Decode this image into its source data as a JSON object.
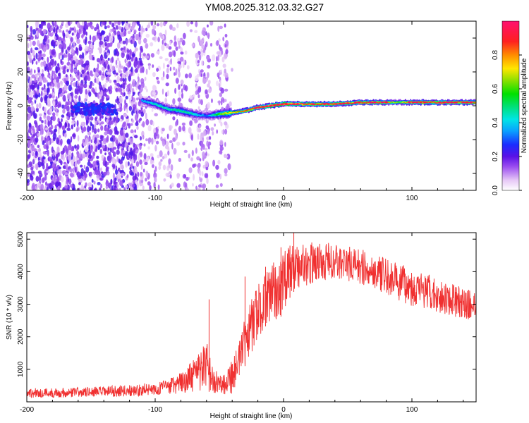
{
  "title": "YM08.2025.312.03.32.G27",
  "chart_data": [
    {
      "type": "heatmap",
      "title": "YM08.2025.312.03.32.G27",
      "xlabel": "Height of straight line (km)",
      "ylabel": "Frequency (Hz)",
      "xlim": [
        -200,
        150
      ],
      "ylim": [
        -50,
        50
      ],
      "xticks": [
        "-200",
        "-100",
        "0",
        "100"
      ],
      "yticks": [
        "40",
        "20",
        "0",
        "-20",
        "-40"
      ],
      "colorbar": {
        "label": "Normalized spectral amplitude",
        "range": [
          0,
          1
        ],
        "ticks": [
          "0.0",
          "0.2",
          "0.4",
          "0.6",
          "0.8"
        ]
      },
      "ridge": {
        "x": [
          -110,
          -100,
          -90,
          -80,
          -70,
          -60,
          -50,
          -40,
          -30,
          -20,
          -10,
          0,
          10,
          20,
          40,
          60,
          80,
          90,
          100,
          120,
          150
        ],
        "frequency_hz": [
          3,
          1,
          -2,
          -3,
          -5,
          -6,
          -5,
          -4,
          -3,
          -1,
          0,
          1,
          1,
          1,
          1,
          2,
          2,
          2,
          2,
          2,
          2
        ],
        "amplitude": [
          0.35,
          0.45,
          0.45,
          0.5,
          0.45,
          0.3,
          0.6,
          0.75,
          0.85,
          0.9,
          0.95,
          1.0,
          0.95,
          0.9,
          0.9,
          0.9,
          0.85,
          0.6,
          0.9,
          0.9,
          0.85
        ]
      }
    },
    {
      "type": "line",
      "xlabel": "Height of straight line (km)",
      "ylabel": "SNR (10 * v/v)",
      "xlim": [
        -200,
        150
      ],
      "ylim": [
        0,
        5200
      ],
      "xticks": [
        "-200",
        "-100",
        "0",
        "100"
      ],
      "yticks": [
        "5000",
        "4000",
        "3000",
        "2000",
        "1000"
      ],
      "series": [
        {
          "name": "SNR",
          "color": "#f03030",
          "envelope_x": [
            -200,
            -180,
            -160,
            -140,
            -120,
            -100,
            -90,
            -80,
            -70,
            -65,
            -60,
            -55,
            -50,
            -45,
            -40,
            -35,
            -30,
            -25,
            -20,
            -15,
            -10,
            -5,
            0,
            5,
            10,
            20,
            30,
            40,
            50,
            60,
            70,
            80,
            90,
            100,
            110,
            120,
            130,
            140,
            150
          ],
          "envelope_low": [
            120,
            130,
            140,
            150,
            170,
            200,
            230,
            260,
            300,
            320,
            350,
            250,
            220,
            200,
            250,
            500,
            1100,
            1500,
            1900,
            2300,
            2400,
            2500,
            2700,
            3200,
            3500,
            3600,
            3700,
            3750,
            3700,
            3600,
            3500,
            3300,
            3100,
            2950,
            2850,
            2750,
            2650,
            2550,
            2500
          ],
          "envelope_high": [
            420,
            430,
            450,
            480,
            520,
            600,
            700,
            900,
            1300,
            1600,
            1900,
            1000,
            900,
            1000,
            1400,
            1800,
            2600,
            3200,
            3600,
            3900,
            4200,
            4400,
            4600,
            4800,
            4850,
            4900,
            4900,
            4880,
            4800,
            4700,
            4550,
            4400,
            4250,
            4100,
            3950,
            3800,
            3650,
            3500,
            3400
          ],
          "spikes": [
            {
              "x": -58,
              "y": 3150
            },
            {
              "x": -30,
              "y": 3850
            },
            {
              "x": -14,
              "y": 4150
            },
            {
              "x": -2,
              "y": 4750
            },
            {
              "x": 5,
              "y": 4800
            },
            {
              "x": 8,
              "y": 5200
            }
          ]
        }
      ]
    }
  ]
}
